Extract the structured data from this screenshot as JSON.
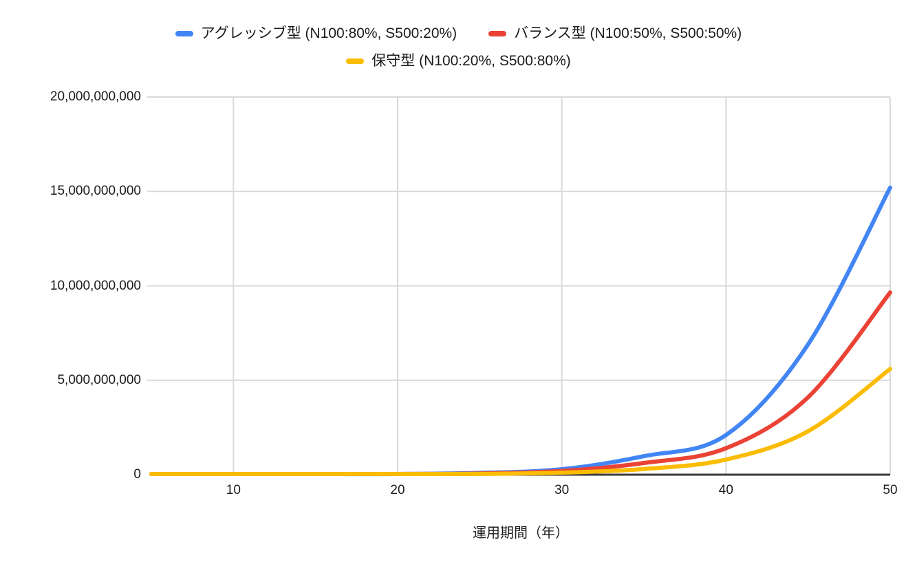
{
  "chart_data": {
    "type": "line",
    "title": "",
    "xlabel": "運用期間（年）",
    "ylabel": "",
    "xlim": [
      5,
      50
    ],
    "ylim": [
      0,
      20000000000
    ],
    "grid": true,
    "legend_position": "top",
    "x": [
      5,
      10,
      15,
      20,
      25,
      30,
      35,
      40,
      45,
      50
    ],
    "series": [
      {
        "name": "アグレッシブ型 (N100:80%, S500:20%)",
        "color": "#4285F4",
        "values": [
          1200000,
          4000000,
          11000000,
          32000000,
          95000000,
          290000000,
          980000000,
          2100000000,
          6900000000,
          15200000000
        ]
      },
      {
        "name": "バランス型 (N100:50%, S500:50%)",
        "color": "#EA4335",
        "values": [
          900000,
          2600000,
          7500000,
          22000000,
          65000000,
          200000000,
          620000000,
          1400000000,
          4100000000,
          9650000000
        ]
      },
      {
        "name": "保守型 (N100:20%, S500:80%)",
        "color": "#FBBC04",
        "values": [
          700000,
          1900000,
          5500000,
          15000000,
          42000000,
          110000000,
          300000000,
          800000000,
          2300000000,
          5600000000
        ]
      }
    ],
    "yticks": [
      "0",
      "5,000,000,000",
      "10,000,000,000",
      "15,000,000,000",
      "20,000,000,000"
    ],
    "xticks": [
      "10",
      "20",
      "30",
      "40",
      "50"
    ],
    "colors": {
      "gridline": "#d9d9d9",
      "axis_line": "#3b3b3b",
      "tick_text": "#1b1b1b"
    }
  }
}
